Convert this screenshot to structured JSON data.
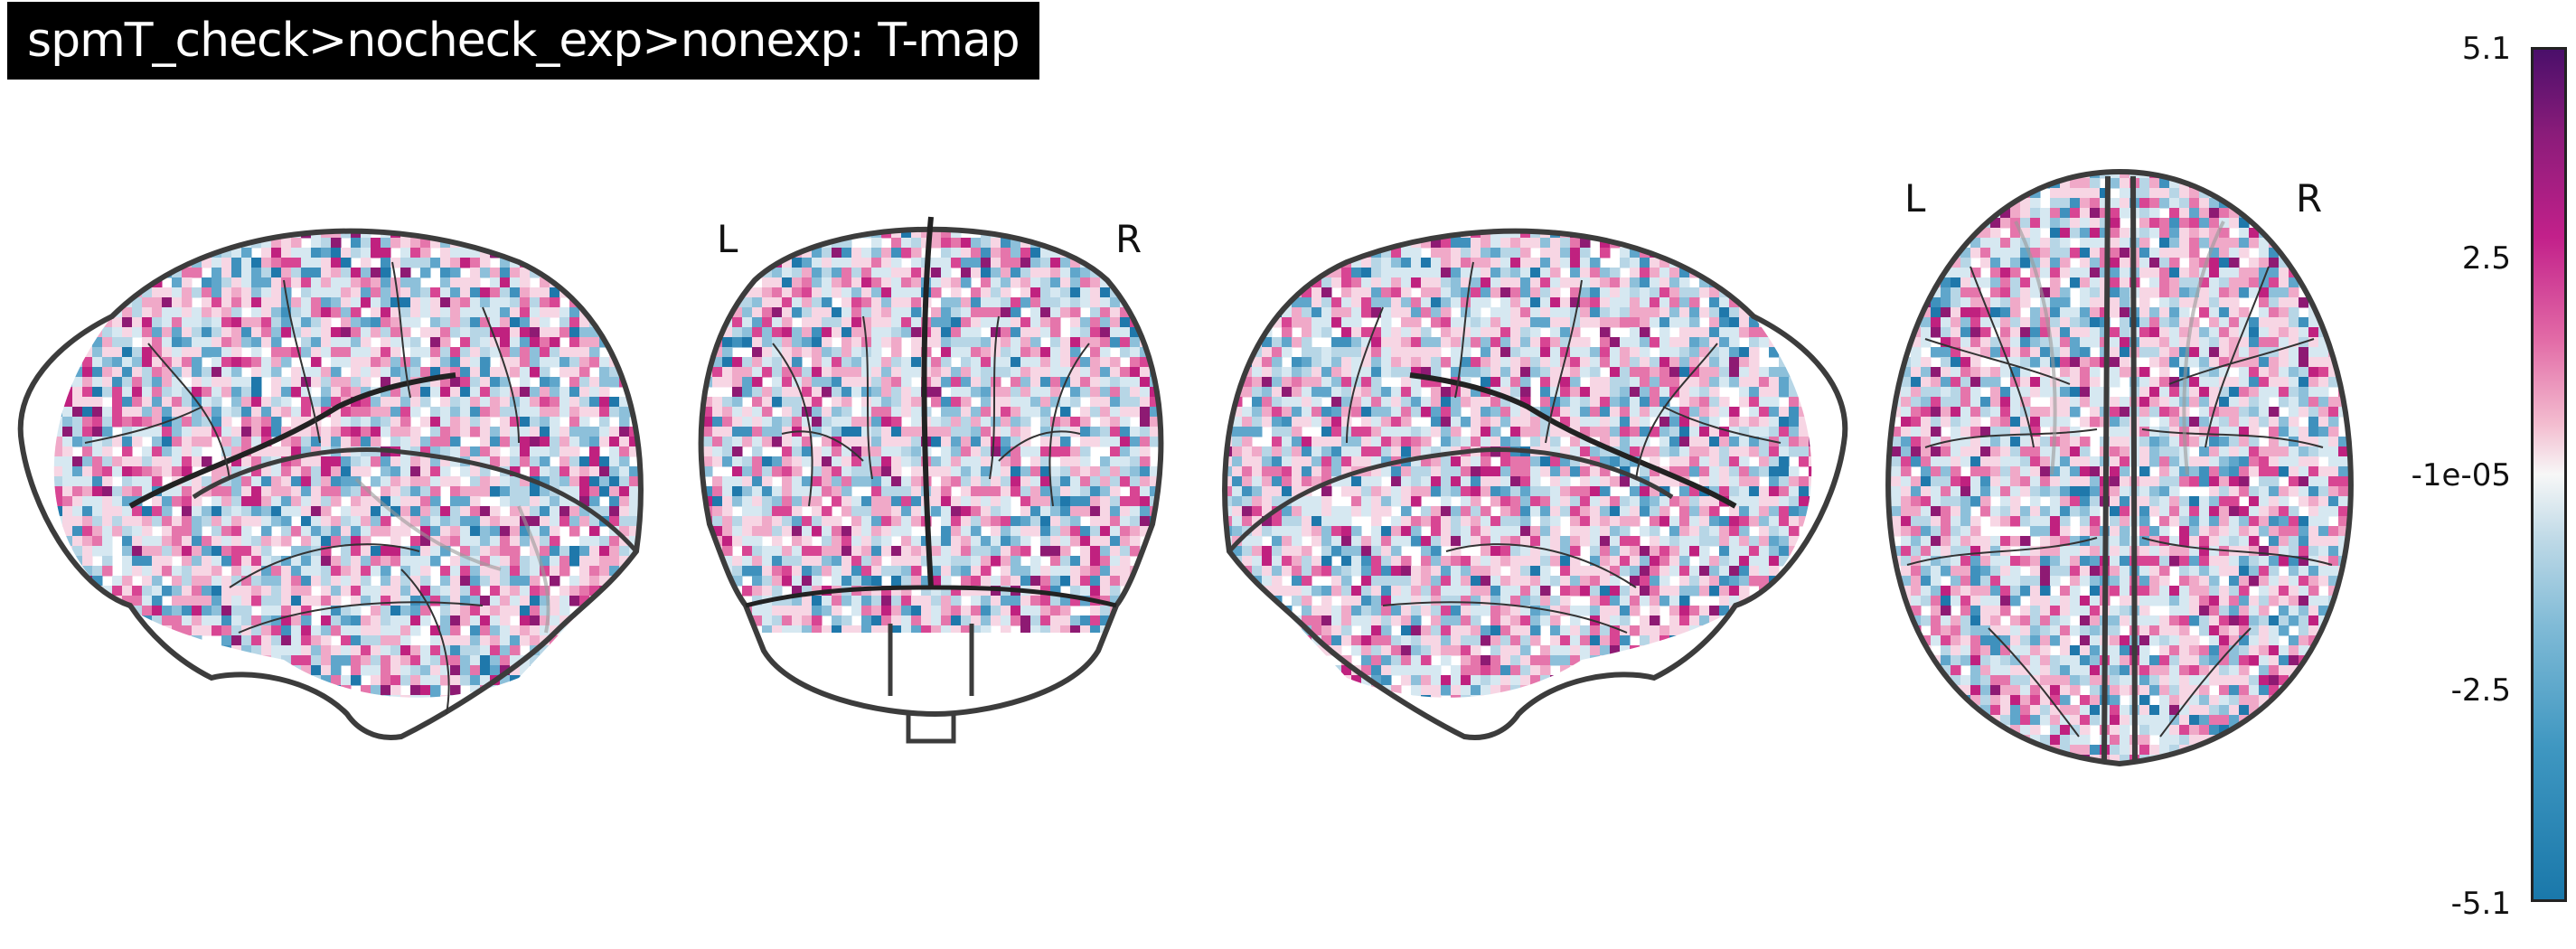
{
  "title": "spmT_check>nocheck_exp>nonexp: T-map",
  "views": {
    "coronal": {
      "left_label": "L",
      "right_label": "R"
    },
    "axial": {
      "left_label": "L",
      "right_label": "R"
    }
  },
  "colorbar": {
    "ticks": [
      "5.1",
      "2.5",
      "-1e-05",
      "-2.5",
      "-5.1"
    ],
    "range": [
      -5.1,
      5.1
    ],
    "colormap": "cold_hot"
  },
  "colors": {
    "outline": "#3c3c3c",
    "positive": "#e0409a",
    "negative": "#3f97c1",
    "title_bg": "#000000"
  }
}
